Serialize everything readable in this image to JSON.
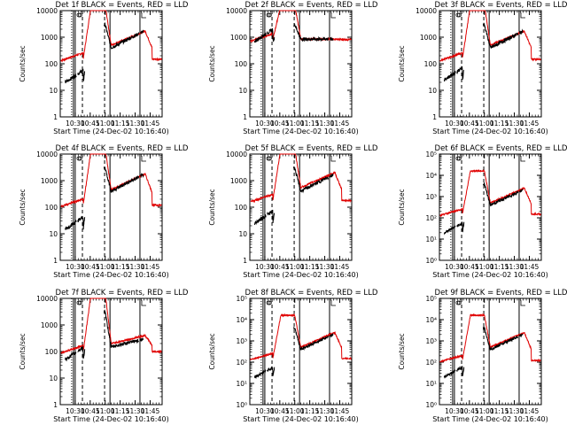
{
  "chart_data": [
    {
      "type": "line",
      "title": "Det 1f BLACK = Events, RED = LLD",
      "ylabel": "Counts/sec",
      "xlabel": "Start Time (24-Dec-02 10:16:40)",
      "ylog": true,
      "ylim": [
        1,
        10000
      ],
      "yticks": [
        "1",
        "10",
        "100",
        "1000",
        "10000"
      ],
      "xticks": [
        "10:30",
        "10:45",
        "11:00",
        "11:15",
        "11:30",
        "11:45"
      ],
      "series": [
        {
          "name": "Events",
          "color": "#000000"
        },
        {
          "name": "LLD",
          "color": "#e00000"
        }
      ],
      "lld_profile": {
        "pre": 150,
        "peak": 16000,
        "post": 500,
        "bump": 1700,
        "tail": 150
      },
      "event_profile": {
        "pre": 20,
        "peak": 3000,
        "post": 400,
        "bump": 1800,
        "tail": 50
      }
    },
    {
      "type": "line",
      "title": "Det 2f BLACK = Events, RED = LLD",
      "ylabel": "Counts/sec",
      "xlabel": "Start Time (24-Dec-02 10:16:40)",
      "ylog": true,
      "ylim": [
        1,
        10000
      ],
      "yticks": [
        "1",
        "10",
        "100",
        "1000",
        "10000"
      ],
      "xticks": [
        "10:30",
        "10:45",
        "11:00",
        "11:15",
        "11:30",
        "11:45"
      ],
      "series": [
        {
          "name": "Events",
          "color": "#000000"
        },
        {
          "name": "LLD",
          "color": "#e00000"
        }
      ],
      "lld_profile": {
        "pre": 800,
        "peak": 16000,
        "post": 850,
        "bump": 850,
        "tail": 800
      },
      "event_profile": {
        "pre": 700,
        "peak": 3000,
        "post": 850,
        "bump": 850,
        "tail": 800
      }
    },
    {
      "type": "line",
      "title": "Det 3f BLACK = Events, RED = LLD",
      "ylabel": "Counts/sec",
      "xlabel": "Start Time (24-Dec-02 10:16:40)",
      "ylog": true,
      "ylim": [
        1,
        10000
      ],
      "yticks": [
        "1",
        "10",
        "100",
        "1000",
        "10000"
      ],
      "xticks": [
        "10:30",
        "10:45",
        "11:00",
        "11:15",
        "11:30",
        "11:45"
      ],
      "series": [
        {
          "name": "Events",
          "color": "#000000"
        },
        {
          "name": "LLD",
          "color": "#e00000"
        }
      ],
      "lld_profile": {
        "pre": 150,
        "peak": 16000,
        "post": 500,
        "bump": 1700,
        "tail": 150
      },
      "event_profile": {
        "pre": 25,
        "peak": 3000,
        "post": 400,
        "bump": 1800,
        "tail": 50
      }
    },
    {
      "type": "line",
      "title": "Det 4f BLACK = Events, RED = LLD",
      "ylabel": "Counts/sec",
      "xlabel": "Start Time (24-Dec-02 10:16:40)",
      "ylog": true,
      "ylim": [
        1,
        10000
      ],
      "yticks": [
        "1",
        "10",
        "100",
        "1000",
        "10000"
      ],
      "xticks": [
        "10:30",
        "10:45",
        "11:00",
        "11:15",
        "11:30",
        "11:45"
      ],
      "series": [
        {
          "name": "Events",
          "color": "#000000"
        },
        {
          "name": "LLD",
          "color": "#e00000"
        }
      ],
      "lld_profile": {
        "pre": 120,
        "peak": 16000,
        "post": 450,
        "bump": 1800,
        "tail": 120
      },
      "event_profile": {
        "pre": 15,
        "peak": 3000,
        "post": 400,
        "bump": 1800,
        "tail": 40
      }
    },
    {
      "type": "line",
      "title": "Det 5f BLACK = Events, RED = LLD",
      "ylabel": "Counts/sec",
      "xlabel": "Start Time (24-Dec-02 10:16:40)",
      "ylog": true,
      "ylim": [
        1,
        10000
      ],
      "yticks": [
        "1",
        "10",
        "100",
        "1000",
        "10000"
      ],
      "xticks": [
        "10:30",
        "10:45",
        "11:00",
        "11:15",
        "11:30",
        "11:45"
      ],
      "series": [
        {
          "name": "Events",
          "color": "#000000"
        },
        {
          "name": "LLD",
          "color": "#e00000"
        }
      ],
      "lld_profile": {
        "pre": 180,
        "peak": 16000,
        "post": 550,
        "bump": 2000,
        "tail": 180
      },
      "event_profile": {
        "pre": 25,
        "peak": 3000,
        "post": 400,
        "bump": 1800,
        "tail": 50
      }
    },
    {
      "type": "line",
      "title": "Det 6f BLACK = Events, RED = LLD",
      "ylabel": "Counts/sec",
      "xlabel": "Start Time (24-Dec-02 10:16:40)",
      "ylog": true,
      "ylim": [
        1,
        100000
      ],
      "yticks": [
        "10⁰",
        "10¹",
        "10²",
        "10³",
        "10⁴",
        "10⁵"
      ],
      "xticks": [
        "10:30",
        "10:45",
        "11:00",
        "11:15",
        "11:30",
        "11:45"
      ],
      "series": [
        {
          "name": "Events",
          "color": "#000000"
        },
        {
          "name": "LLD",
          "color": "#e00000"
        }
      ],
      "lld_profile": {
        "pre": 150,
        "peak": 16000,
        "post": 500,
        "bump": 2500,
        "tail": 150
      },
      "event_profile": {
        "pre": 20,
        "peak": 4000,
        "post": 400,
        "bump": 2200,
        "tail": 40
      }
    },
    {
      "type": "line",
      "title": "Det 7f BLACK = Events, RED = LLD",
      "ylabel": "Counts/sec",
      "xlabel": "Start Time (24-Dec-02 10:16:40)",
      "ylog": true,
      "ylim": [
        1,
        10000
      ],
      "yticks": [
        "1",
        "10",
        "100",
        "1000",
        "10000"
      ],
      "xticks": [
        "10:30",
        "10:45",
        "11:00",
        "11:15",
        "11:30",
        "11:45"
      ],
      "series": [
        {
          "name": "Events",
          "color": "#000000"
        },
        {
          "name": "LLD",
          "color": "#e00000"
        }
      ],
      "lld_profile": {
        "pre": 100,
        "peak": 16000,
        "post": 200,
        "bump": 400,
        "tail": 100
      },
      "event_profile": {
        "pre": 50,
        "peak": 3000,
        "post": 150,
        "bump": 300,
        "tail": 80
      }
    },
    {
      "type": "line",
      "title": "Det 8f BLACK = Events, RED = LLD",
      "ylabel": "Counts/sec",
      "xlabel": "Start Time (24-Dec-02 10:16:40)",
      "ylog": true,
      "ylim": [
        1,
        100000
      ],
      "yticks": [
        "10⁰",
        "10¹",
        "10²",
        "10³",
        "10⁴",
        "10⁵"
      ],
      "xticks": [
        "10:30",
        "10:45",
        "11:00",
        "11:15",
        "11:30",
        "11:45"
      ],
      "series": [
        {
          "name": "Events",
          "color": "#000000"
        },
        {
          "name": "LLD",
          "color": "#e00000"
        }
      ],
      "lld_profile": {
        "pre": 150,
        "peak": 16000,
        "post": 500,
        "bump": 2500,
        "tail": 150
      },
      "event_profile": {
        "pre": 20,
        "peak": 4000,
        "post": 400,
        "bump": 2200,
        "tail": 40
      }
    },
    {
      "type": "line",
      "title": "Det 9f BLACK = Events, RED = LLD",
      "ylabel": "Counts/sec",
      "xlabel": "Start Time (24-Dec-02 10:16:40)",
      "ylog": true,
      "ylim": [
        1,
        100000
      ],
      "yticks": [
        "10⁰",
        "10¹",
        "10²",
        "10³",
        "10⁴",
        "10⁵"
      ],
      "xticks": [
        "10:30",
        "10:45",
        "11:00",
        "11:15",
        "11:30",
        "11:45"
      ],
      "series": [
        {
          "name": "Events",
          "color": "#000000"
        },
        {
          "name": "LLD",
          "color": "#e00000"
        }
      ],
      "lld_profile": {
        "pre": 120,
        "peak": 16000,
        "post": 500,
        "bump": 2500,
        "tail": 120
      },
      "event_profile": {
        "pre": 20,
        "peak": 4000,
        "post": 400,
        "bump": 2200,
        "tail": 40
      }
    }
  ]
}
